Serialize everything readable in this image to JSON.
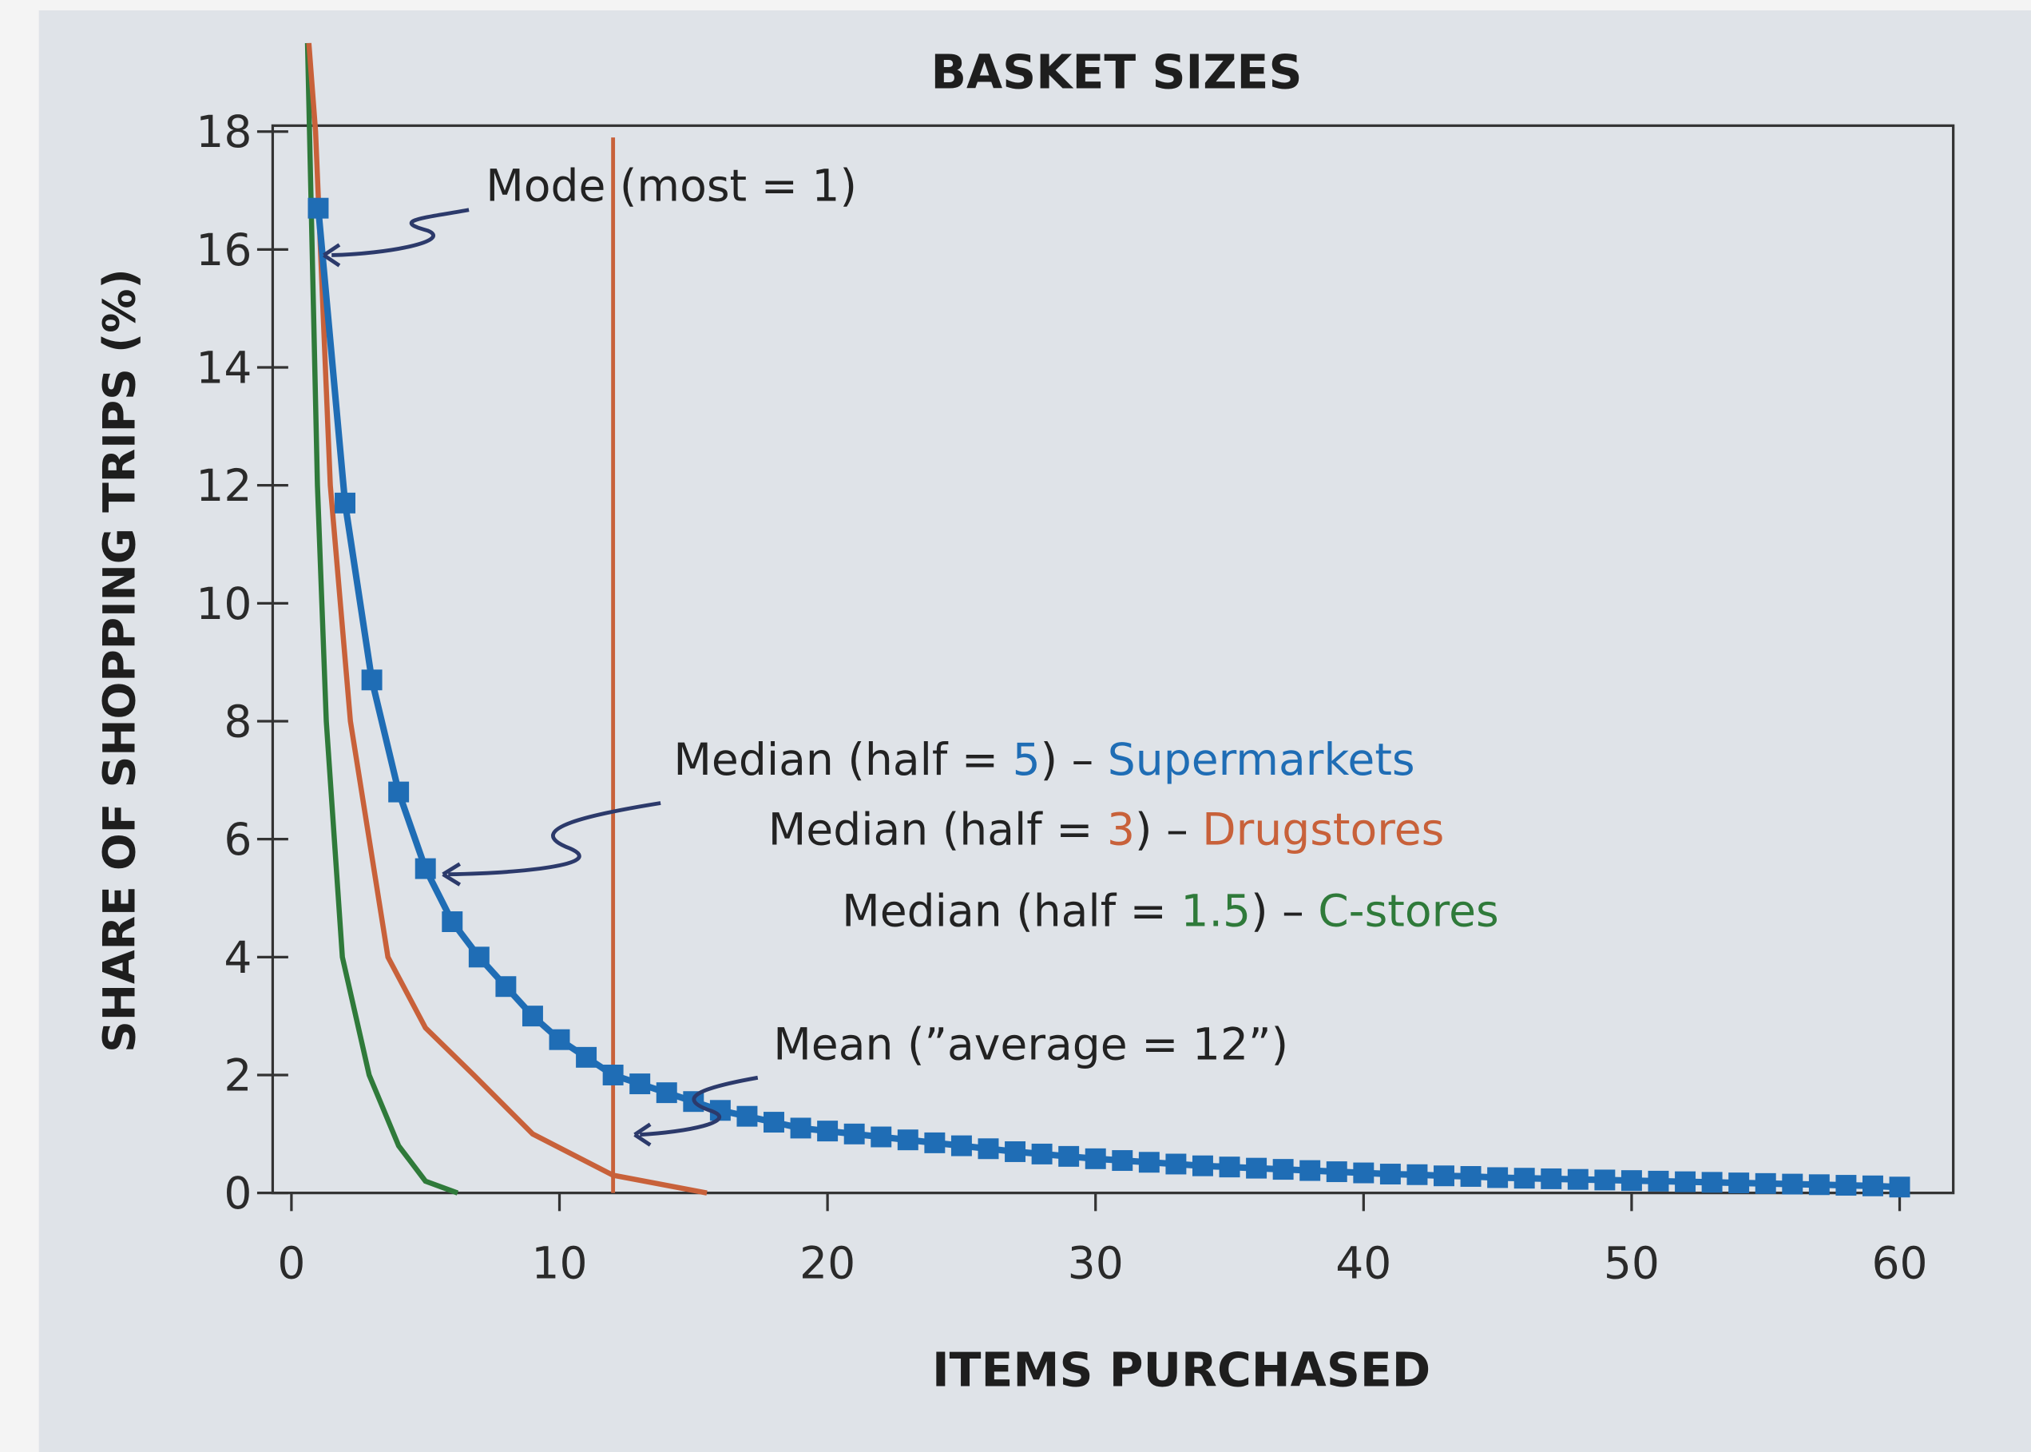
{
  "chart_data": {
    "type": "line",
    "title": "BASKET SIZES",
    "x_label": "ITEMS PURCHASED",
    "y_label": "SHARE OF SHOPPING TRIPS (%)",
    "xlim": [
      -0.7,
      62
    ],
    "ylim": [
      0,
      18.1
    ],
    "xticks": [
      0,
      10,
      20,
      30,
      40,
      50,
      60
    ],
    "yticks": [
      0,
      2,
      4,
      6,
      8,
      10,
      12,
      14,
      16,
      18
    ],
    "series": [
      {
        "name": "C-stores",
        "color": "#2f7a3a",
        "markers": false,
        "x": [
          0.6,
          0.97,
          1.3,
          1.9,
          2.9,
          4,
          5,
          6.2
        ],
        "values": [
          19.5,
          12,
          8,
          4,
          2,
          0.8,
          0.2,
          0
        ]
      },
      {
        "name": "Drugstores",
        "color": "#c8613a",
        "markers": false,
        "x": [
          0.65,
          0.9,
          1.45,
          2.2,
          3.6,
          5,
          6.8,
          9,
          12,
          15.5
        ],
        "values": [
          19.5,
          18,
          12,
          8,
          4,
          2.8,
          2,
          1,
          0.3,
          0
        ]
      },
      {
        "name": "Supermarkets",
        "color": "#1f6db5",
        "markers": true,
        "x": [
          1,
          2,
          3,
          4,
          5,
          6,
          7,
          8,
          9,
          10,
          11,
          12,
          13,
          14,
          15,
          16,
          17,
          18,
          19,
          20,
          21,
          22,
          23,
          24,
          25,
          26,
          27,
          28,
          29,
          30,
          31,
          32,
          33,
          34,
          35,
          36,
          37,
          38,
          39,
          40,
          41,
          42,
          43,
          44,
          45,
          46,
          47,
          48,
          49,
          50,
          51,
          52,
          53,
          54,
          55,
          56,
          57,
          58,
          59,
          60
        ],
        "values": [
          16.7,
          11.7,
          8.7,
          6.8,
          5.5,
          4.6,
          4.0,
          3.5,
          3.0,
          2.6,
          2.3,
          2.0,
          1.85,
          1.7,
          1.55,
          1.4,
          1.3,
          1.2,
          1.1,
          1.05,
          1.0,
          0.95,
          0.9,
          0.85,
          0.8,
          0.75,
          0.7,
          0.66,
          0.62,
          0.58,
          0.55,
          0.52,
          0.49,
          0.46,
          0.44,
          0.42,
          0.4,
          0.38,
          0.36,
          0.34,
          0.32,
          0.31,
          0.29,
          0.28,
          0.26,
          0.25,
          0.24,
          0.23,
          0.22,
          0.21,
          0.2,
          0.19,
          0.18,
          0.17,
          0.16,
          0.15,
          0.14,
          0.13,
          0.12,
          0.1
        ]
      }
    ],
    "mean_line": {
      "x": 12,
      "values": [
        0,
        17.9
      ],
      "color": "#c8613a"
    },
    "annotations": [
      {
        "parts": [
          "Mode (most = 1)"
        ],
        "colors": [
          "#222222"
        ]
      },
      {
        "parts": [
          "Median (half = ",
          "5",
          ") – ",
          "Supermarkets"
        ],
        "colors": [
          "#222222",
          "#1f6db5",
          "#222222",
          "#1f6db5"
        ]
      },
      {
        "parts": [
          "Median (half = ",
          "3",
          ") – ",
          "Drugstores"
        ],
        "colors": [
          "#222222",
          "#c8613a",
          "#222222",
          "#c8613a"
        ]
      },
      {
        "parts": [
          "Median (half = ",
          "1.5",
          ") – ",
          "C-stores"
        ],
        "colors": [
          "#222222",
          "#2f7a3a",
          "#222222",
          "#2f7a3a"
        ]
      },
      {
        "parts": [
          "Mean (”average = 12”)"
        ],
        "colors": [
          "#222222"
        ]
      }
    ]
  }
}
